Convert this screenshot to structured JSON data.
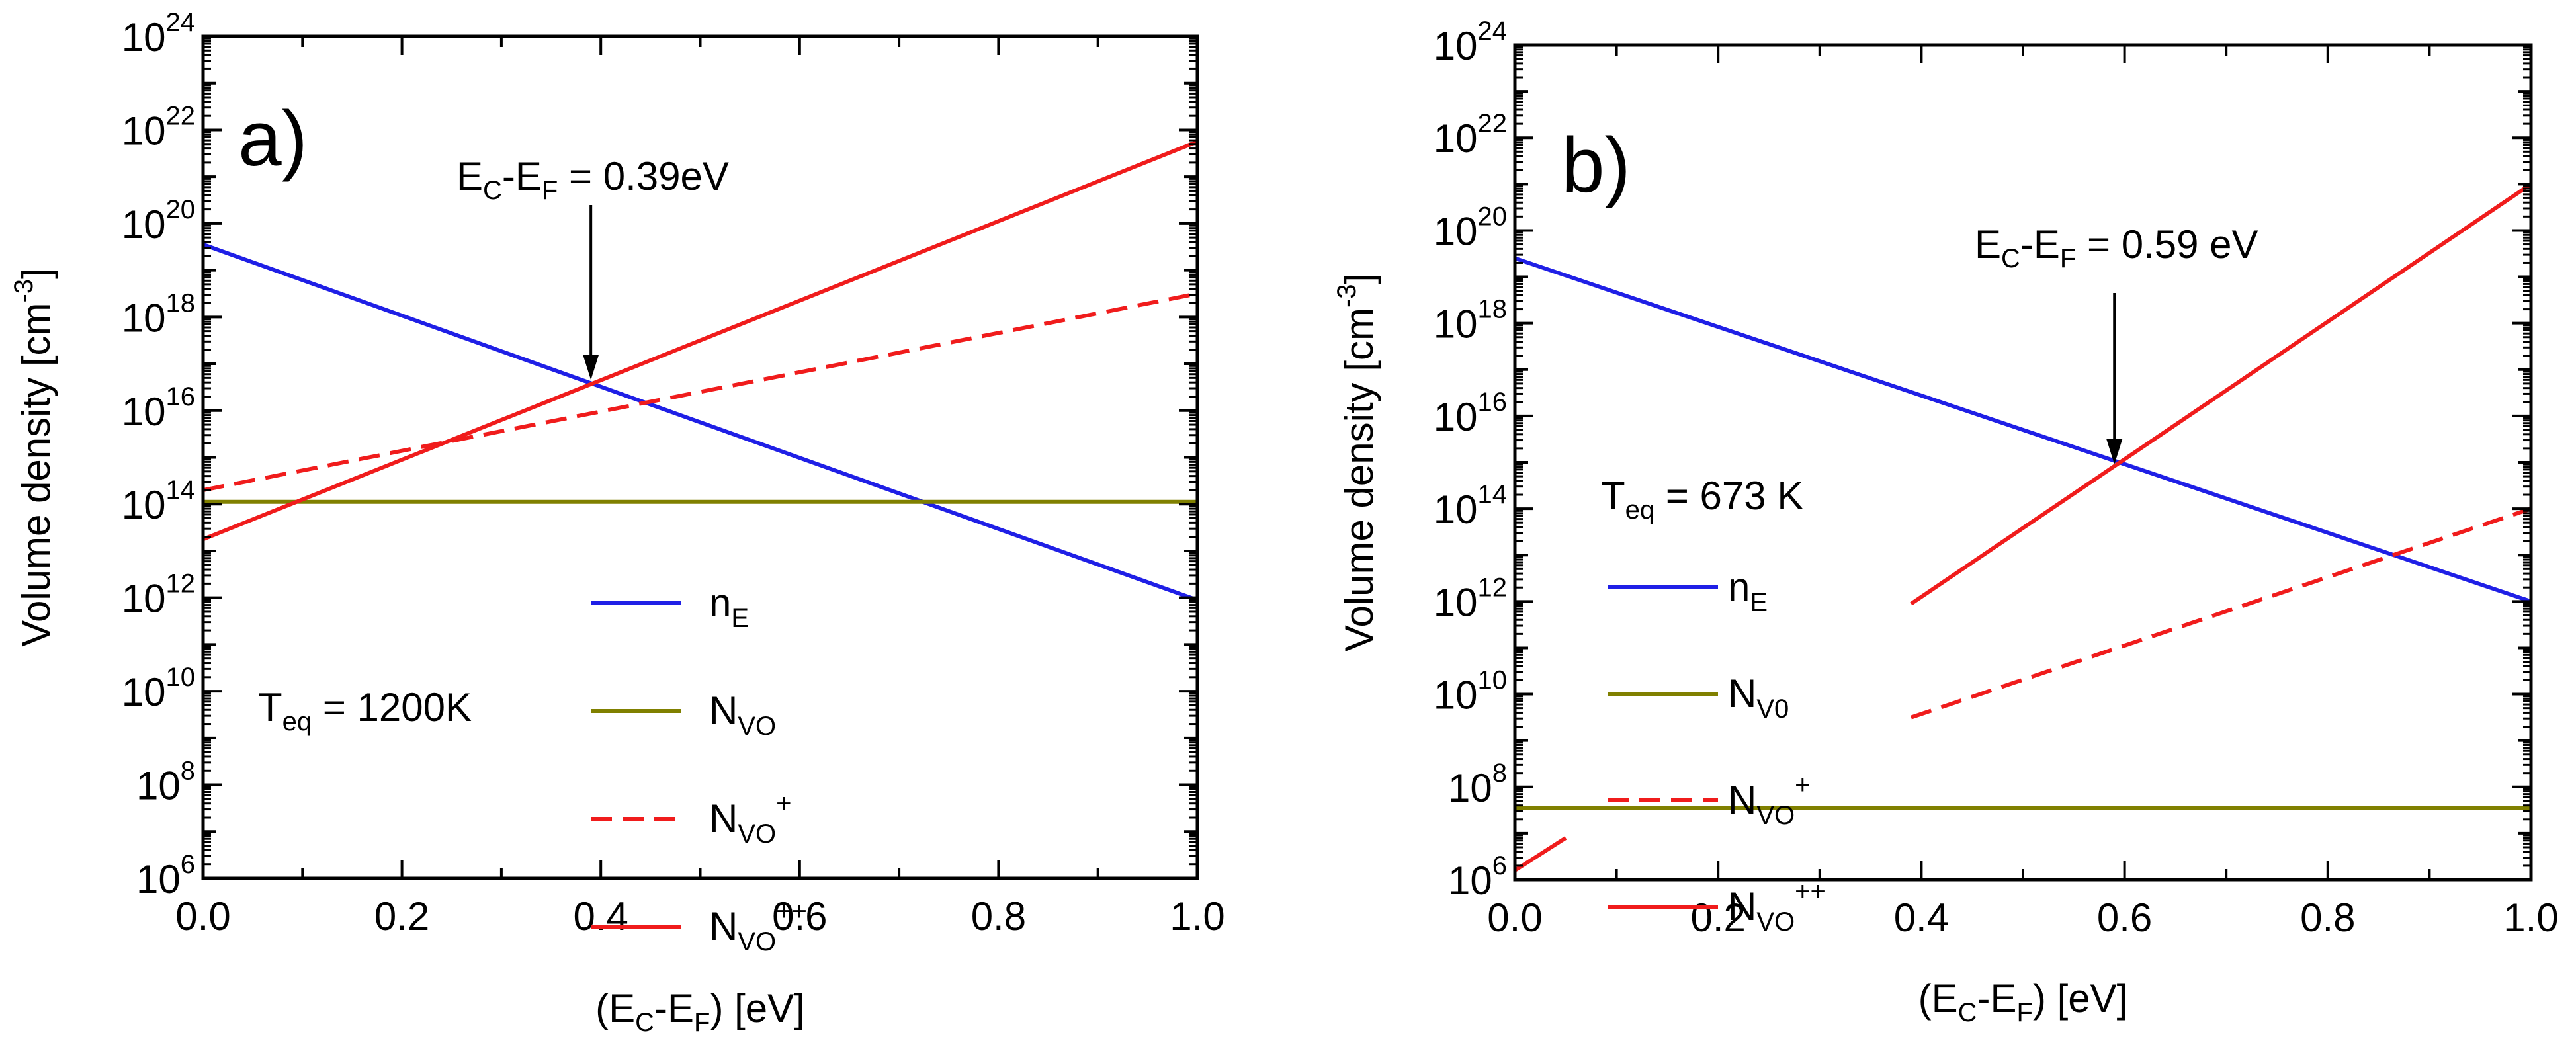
{
  "chart_data": [
    {
      "type": "line",
      "panel_label": "a)",
      "xlabel": {
        "open": "(E",
        "sub1": "C",
        "mid": "-E",
        "sub2": "F",
        "close": ") [eV]"
      },
      "ylabel": {
        "text": "Volume density [cm",
        "sup": "-3",
        "close": "]"
      },
      "xlim": [
        0,
        1
      ],
      "ylim_log10": [
        6,
        24
      ],
      "xticks": [
        "0.0",
        "0.2",
        "0.4",
        "0.6",
        "0.8",
        "1.0"
      ],
      "ytick_exponents": [
        "6",
        "8",
        "10",
        "12",
        "14",
        "16",
        "18",
        "20",
        "22",
        "24"
      ],
      "ytick_base": "10",
      "annotation": {
        "text": "E",
        "sub1": "C",
        "mid": "-E",
        "sub2": "F",
        "value": " = 0.39eV",
        "x": 0.39,
        "log10y": 16.6
      },
      "temperature": {
        "label": "T",
        "sub": "eq",
        "value": " = 1200K"
      },
      "series": [
        {
          "name": "n",
          "name_sub": "E",
          "name_sup": "",
          "color": "#1f1fe6",
          "style": "solid",
          "points": [
            [
              0,
              19.55
            ],
            [
              1,
              11.95
            ]
          ]
        },
        {
          "name": "N",
          "name_sub": "VO",
          "name_sup": "",
          "color": "#808000",
          "style": "solid",
          "points": [
            [
              0,
              14.05
            ],
            [
              1,
              14.05
            ]
          ]
        },
        {
          "name": "N",
          "name_sub": "VO",
          "name_sup": "+",
          "color": "#f01c1c",
          "style": "dashed",
          "points": [
            [
              0,
              14.3
            ],
            [
              1,
              18.5
            ]
          ]
        },
        {
          "name": "N",
          "name_sub": "VO",
          "name_sup": "++",
          "color": "#f01c1c",
          "style": "solid",
          "points": [
            [
              0,
              13.25
            ],
            [
              1,
              21.75
            ]
          ]
        }
      ]
    },
    {
      "type": "line",
      "panel_label": "b)",
      "xlabel": {
        "open": "(E",
        "sub1": "C",
        "mid": "-E",
        "sub2": "F",
        "close": ") [eV]"
      },
      "ylabel": {
        "text": "Volume density [cm",
        "sup": "-3",
        "close": "]"
      },
      "xlim": [
        0,
        1
      ],
      "ylim_log10": [
        6,
        24
      ],
      "xticks": [
        "0.0",
        "0.2",
        "0.4",
        "0.6",
        "0.8",
        "1.0"
      ],
      "ytick_exponents": [
        "6",
        "8",
        "10",
        "12",
        "14",
        "16",
        "18",
        "20",
        "22",
        "24"
      ],
      "ytick_base": "10",
      "annotation": {
        "text": "E",
        "sub1": "C",
        "mid": "-E",
        "sub2": "F",
        "value": " = 0.59 eV",
        "x": 0.59,
        "log10y": 14.9
      },
      "temperature": {
        "label": "T",
        "sub": "eq",
        "value": " = 673 K"
      },
      "series": [
        {
          "name": "n",
          "name_sub": "E",
          "name_sup": "",
          "color": "#1f1fe6",
          "style": "solid",
          "points": [
            [
              0,
              19.4
            ],
            [
              1,
              12.0
            ]
          ]
        },
        {
          "name": "N",
          "name_sub": "V0",
          "name_sup": "",
          "color": "#808000",
          "style": "solid",
          "points": [
            [
              0,
              7.55
            ],
            [
              0.035,
              7.55
            ],
            [
              0.39,
              7.55
            ],
            [
              1,
              7.55
            ]
          ]
        },
        {
          "name": "N",
          "name_sub": "VO",
          "name_sup": "+",
          "color": "#f01c1c",
          "style": "dashed",
          "points": [
            [
              0.39,
              9.5
            ],
            [
              1,
              14.0
            ]
          ]
        },
        {
          "name": "N",
          "name_sub": "VO",
          "name_sup": "++",
          "color": "#f01c1c",
          "style": "solid",
          "points": [
            [
              0,
              6.2
            ],
            [
              0.05,
              6.9
            ]
          ],
          "extra_segment": [
            [
              0.39,
              11.95
            ],
            [
              1,
              21.0
            ]
          ]
        }
      ]
    }
  ]
}
